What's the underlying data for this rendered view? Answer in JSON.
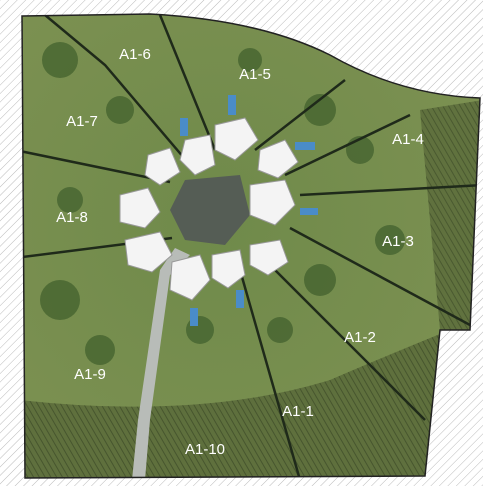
{
  "plots": [
    "A1-1",
    "A1-2",
    "A1-3",
    "A1-4",
    "A1-5",
    "A1-6",
    "A1-7",
    "A1-8",
    "A1-9",
    "A1-10"
  ]
}
